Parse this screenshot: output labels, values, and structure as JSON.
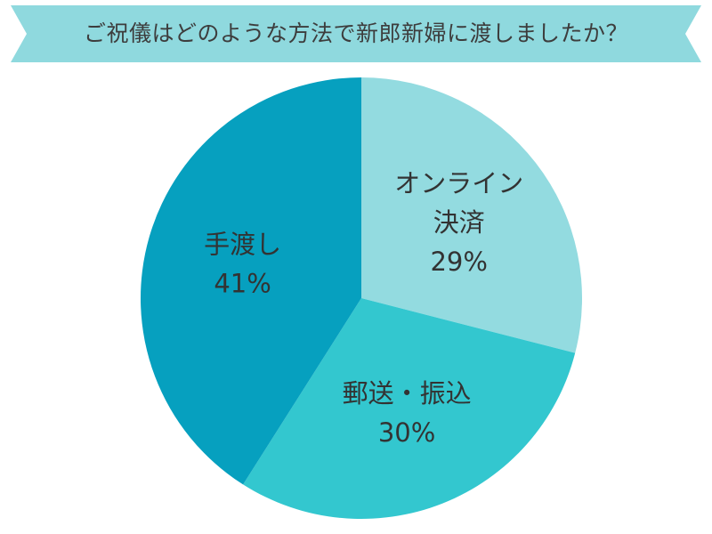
{
  "colors": {
    "banner": "#8fd9de",
    "title_text": "#3d3d3d",
    "slice_online": "#93dbe0",
    "slice_postal": "#33c7cf",
    "slice_hand": "#06a0bf",
    "label_text": "#333333"
  },
  "chart_data": {
    "type": "pie",
    "title": "ご祝儀はどのような方法で新郎新婦に渡しましたか？",
    "legend": "none",
    "slices": [
      {
        "label_lines": [
          "オンライン",
          "決済"
        ],
        "value": 29,
        "value_label": "29%",
        "color": "#93dbe0"
      },
      {
        "label_lines": [
          "郵送・振込"
        ],
        "value": 30,
        "value_label": "30%",
        "color": "#33c7cf"
      },
      {
        "label_lines": [
          "手渡し"
        ],
        "value": 41,
        "value_label": "41%",
        "color": "#06a0bf"
      }
    ]
  }
}
